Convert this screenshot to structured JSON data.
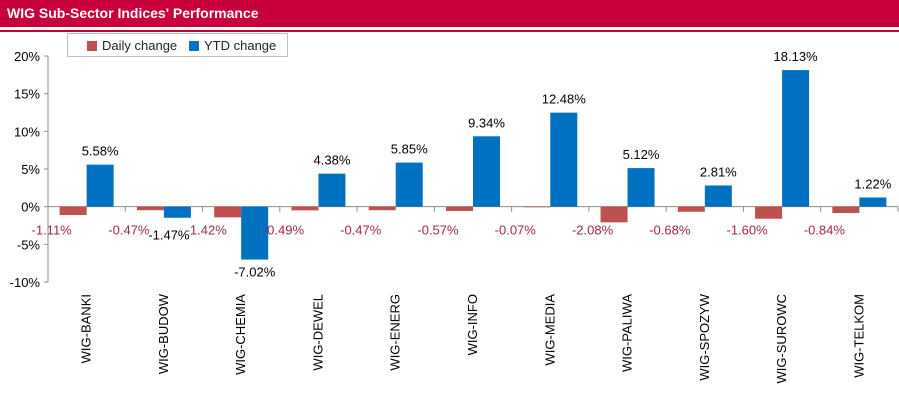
{
  "header": {
    "title": "WIG Sub-Sector Indices' Performance"
  },
  "colors": {
    "daily": "#c0504d",
    "ytd": "#0070c0",
    "negative_label": "#a0284b",
    "title_bg": "#c8003c"
  },
  "chart_data": {
    "type": "bar",
    "categories": [
      "WIG-BANKI",
      "WIG-BUDOW",
      "WIG-CHEMIA",
      "WIG-DEWEL",
      "WIG-ENERG",
      "WIG-INFO",
      "WIG-MEDIA",
      "WIG-PALIWA",
      "WIG-SPOZYW",
      "WIG-SUROWC",
      "WIG-TELKOM"
    ],
    "series": [
      {
        "name": "Daily change",
        "values": [
          -1.11,
          -0.47,
          -1.42,
          -0.49,
          -0.47,
          -0.57,
          -0.07,
          -2.08,
          -0.68,
          -1.6,
          -0.84
        ],
        "labels": [
          "-1.11%",
          "-0.47%",
          "-1.42%",
          "-0.49%",
          "-0.47%",
          "-0.57%",
          "-0.07%",
          "-2.08%",
          "-0.68%",
          "-1.60%",
          "-0.84%"
        ]
      },
      {
        "name": "YTD change",
        "values": [
          5.58,
          -1.47,
          -7.02,
          4.38,
          5.85,
          9.34,
          12.48,
          5.12,
          2.81,
          18.13,
          1.22
        ],
        "labels": [
          "5.58%",
          "-1.47%",
          "-7.02%",
          "4.38%",
          "5.85%",
          "9.34%",
          "12.48%",
          "5.12%",
          "2.81%",
          "18.13%",
          "1.22%"
        ]
      }
    ],
    "ylim": [
      -10,
      20
    ],
    "yticks": [
      -10,
      -5,
      0,
      5,
      10,
      15,
      20
    ],
    "ytick_labels": [
      "-10%",
      "-5%",
      "0%",
      "5%",
      "10%",
      "15%",
      "20%"
    ],
    "legend_position": "top-left",
    "grid": false
  }
}
